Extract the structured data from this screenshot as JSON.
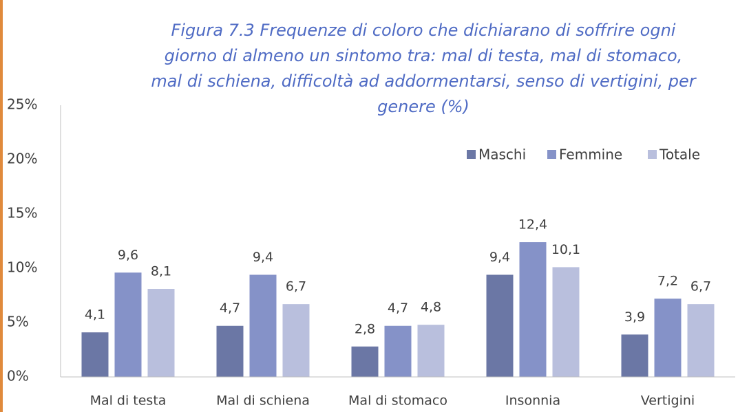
{
  "chart_data": {
    "type": "bar",
    "title": [
      "Figura 7.3 Frequenze di coloro che dichiarano di soffrire ogni",
      "giorno di almeno un sintomo tra: mal di testa, mal di stomaco,",
      "mal di schiena, difficoltà ad addormentarsi, senso di vertigini, per",
      "genere (%)"
    ],
    "categories": [
      "Mal di testa",
      "Mal di schiena",
      "Mal di stomaco",
      "Insonnia",
      "Vertigini"
    ],
    "series": [
      {
        "name": "Maschi",
        "color": "#6b77a5",
        "values": [
          4.1,
          4.7,
          2.8,
          9.4,
          3.9
        ],
        "value_labels": [
          "4,1",
          "4,7",
          "2,8",
          "9,4",
          "3,9"
        ]
      },
      {
        "name": "Femmine",
        "color": "#8592c8",
        "values": [
          9.6,
          9.4,
          4.7,
          12.4,
          7.2
        ],
        "value_labels": [
          "9,6",
          "9,4",
          "4,7",
          "12,4",
          "7,2"
        ]
      },
      {
        "name": "Totale",
        "color": "#b9bfdd",
        "values": [
          8.1,
          6.7,
          4.8,
          10.1,
          6.7
        ],
        "value_labels": [
          "8,1",
          "6,7",
          "4,8",
          "10,1",
          "6,7"
        ]
      }
    ],
    "ylim": [
      0,
      25
    ],
    "yticks": [
      {
        "value": 0,
        "label": "0%"
      },
      {
        "value": 5,
        "label": "5%"
      },
      {
        "value": 10,
        "label": "10%"
      },
      {
        "value": 15,
        "label": "15%"
      },
      {
        "value": 20,
        "label": "20%"
      },
      {
        "value": 25,
        "label": "25%"
      }
    ],
    "grid": false,
    "legend": "top-right"
  }
}
